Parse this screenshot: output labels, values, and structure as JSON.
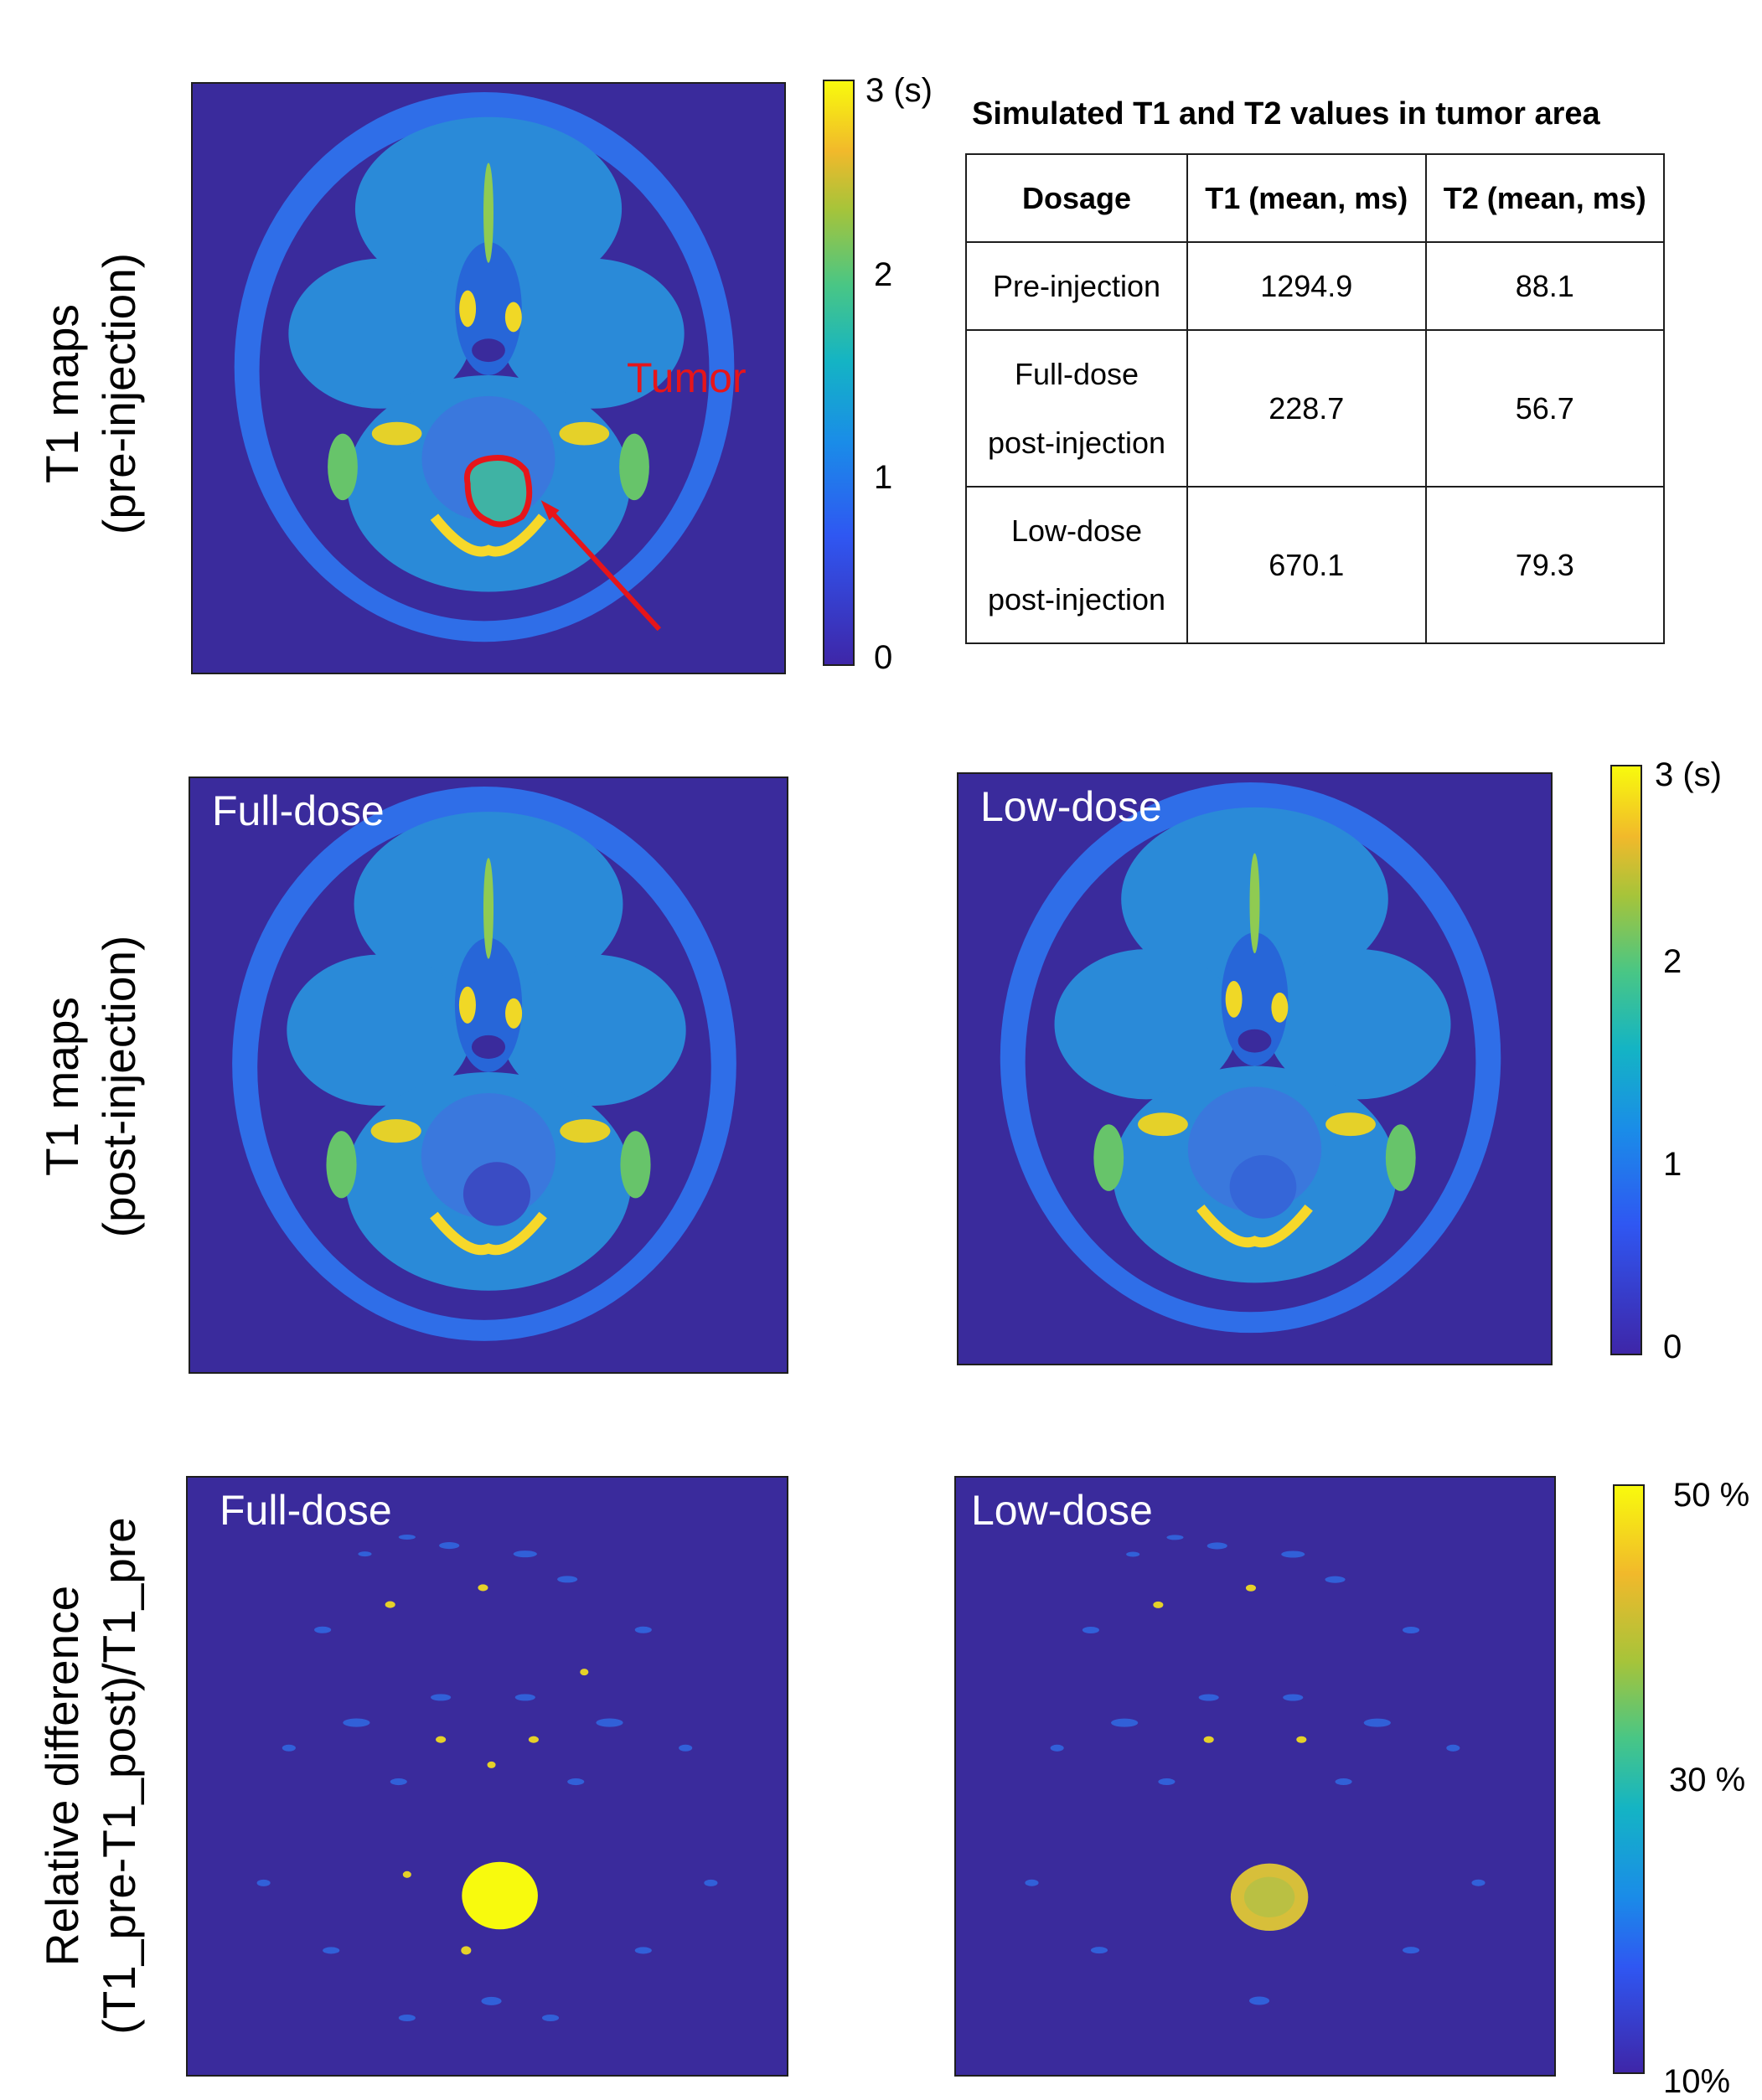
{
  "rows": {
    "pre": {
      "line1": "T1 maps",
      "line2": "(pre-injection)"
    },
    "post": {
      "line1": "T1 maps",
      "line2": "(post-injection)"
    },
    "diff": {
      "line1": "Relative difference",
      "line2": "(T1_pre-T1_post)/T1_pre"
    }
  },
  "panels": {
    "pre_annotation": "Tumor",
    "full_dose": "Full-dose",
    "low_dose": "Low-dose",
    "diff_full_dose": "Full-dose",
    "diff_low_dose": "Low-dose"
  },
  "colorbars": {
    "t1": {
      "top": "3 (s)",
      "mid_high": "2",
      "mid_low": "1",
      "bottom": "0"
    },
    "t1_post": {
      "top": "3 (s)",
      "mid_high": "2",
      "mid_low": "1",
      "bottom": "0"
    },
    "diff": {
      "top": "50 %",
      "mid": "30 %",
      "bottom": "10%"
    }
  },
  "table": {
    "title": "Simulated T1 and T2 values in tumor area",
    "headers": [
      "Dosage",
      "T1 (mean, ms)",
      "T2 (mean, ms)"
    ],
    "rows": [
      {
        "dosage": "Pre-injection",
        "dosage_line2": "",
        "t1": "1294.9",
        "t2": "88.1"
      },
      {
        "dosage": "Full-dose",
        "dosage_line2": "post-injection",
        "t1": "228.7",
        "t2": "56.7"
      },
      {
        "dosage": "Low-dose",
        "dosage_line2": "post-injection",
        "t1": "670.1",
        "t2": "79.3"
      }
    ]
  },
  "colors": {
    "background_map": "#3a2b9c",
    "tumor_outline": "#e6151a"
  }
}
